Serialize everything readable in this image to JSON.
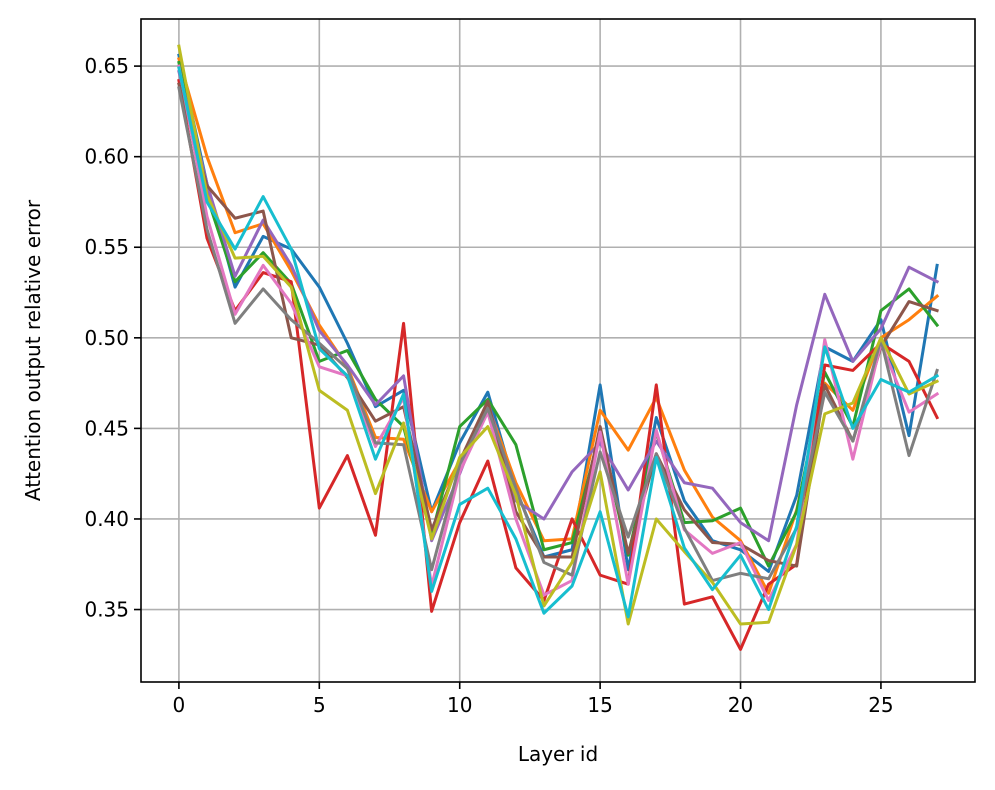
{
  "chart_data": {
    "type": "line",
    "title": "",
    "xlabel": "Layer id",
    "ylabel": "Attention output relative error",
    "xlim": [
      -1.35,
      28.35
    ],
    "ylim": [
      0.31,
      0.676
    ],
    "xticks": [
      0,
      5,
      10,
      15,
      20,
      25
    ],
    "yticks": [
      0.35,
      0.4,
      0.45,
      0.5,
      0.55,
      0.6,
      0.65
    ],
    "ytick_labels": [
      "0.35",
      "0.40",
      "0.45",
      "0.50",
      "0.55",
      "0.60",
      "0.65"
    ],
    "grid": true,
    "legend": "none",
    "x": [
      0,
      1,
      2,
      3,
      4,
      5,
      6,
      7,
      8,
      9,
      10,
      11,
      12,
      13,
      14,
      15,
      16,
      17,
      18,
      19,
      20,
      21,
      22,
      23,
      24,
      25,
      26,
      27
    ],
    "series": [
      {
        "color": "#1f77b4",
        "values": [
          0.656,
          0.585,
          0.528,
          0.556,
          0.549,
          0.528,
          0.497,
          0.462,
          0.471,
          0.404,
          0.442,
          0.47,
          0.416,
          0.379,
          0.383,
          0.474,
          0.372,
          0.456,
          0.41,
          0.388,
          0.383,
          0.371,
          0.413,
          0.495,
          0.487,
          0.51,
          0.446,
          0.54
        ]
      },
      {
        "color": "#ff7f0e",
        "values": [
          0.654,
          0.6,
          0.558,
          0.563,
          0.537,
          0.507,
          0.484,
          0.445,
          0.444,
          0.404,
          0.432,
          0.463,
          0.42,
          0.388,
          0.389,
          0.46,
          0.438,
          0.467,
          0.427,
          0.401,
          0.388,
          0.359,
          0.405,
          0.475,
          0.46,
          0.5,
          0.51,
          0.523
        ]
      },
      {
        "color": "#2ca02c",
        "values": [
          0.652,
          0.578,
          0.531,
          0.547,
          0.53,
          0.487,
          0.493,
          0.466,
          0.451,
          0.391,
          0.451,
          0.466,
          0.441,
          0.383,
          0.387,
          0.448,
          0.38,
          0.448,
          0.398,
          0.399,
          0.406,
          0.374,
          0.404,
          0.481,
          0.451,
          0.515,
          0.527,
          0.507
        ]
      },
      {
        "color": "#d62728",
        "values": [
          0.642,
          0.555,
          0.515,
          0.536,
          0.531,
          0.406,
          0.435,
          0.391,
          0.508,
          0.349,
          0.398,
          0.432,
          0.373,
          0.355,
          0.4,
          0.369,
          0.364,
          0.474,
          0.353,
          0.357,
          0.328,
          0.364,
          0.375,
          0.485,
          0.482,
          0.497,
          0.487,
          0.456
        ]
      },
      {
        "color": "#9467bd",
        "values": [
          0.647,
          0.585,
          0.534,
          0.565,
          0.54,
          0.504,
          0.485,
          0.463,
          0.479,
          0.388,
          0.425,
          0.465,
          0.41,
          0.4,
          0.426,
          0.442,
          0.416,
          0.443,
          0.42,
          0.417,
          0.398,
          0.388,
          0.463,
          0.524,
          0.487,
          0.505,
          0.539,
          0.531
        ]
      },
      {
        "color": "#8c564b",
        "values": [
          0.64,
          0.584,
          0.566,
          0.57,
          0.5,
          0.496,
          0.478,
          0.454,
          0.462,
          0.394,
          0.432,
          0.465,
          0.404,
          0.379,
          0.379,
          0.451,
          0.381,
          0.436,
          0.405,
          0.387,
          0.386,
          0.377,
          0.374,
          0.474,
          0.443,
          0.495,
          0.52,
          0.515
        ]
      },
      {
        "color": "#e377c2",
        "values": [
          0.65,
          0.567,
          0.513,
          0.54,
          0.519,
          0.484,
          0.479,
          0.44,
          0.467,
          0.363,
          0.426,
          0.459,
          0.4,
          0.358,
          0.366,
          0.448,
          0.364,
          0.449,
          0.394,
          0.381,
          0.387,
          0.355,
          0.386,
          0.499,
          0.433,
          0.497,
          0.459,
          0.469
        ]
      },
      {
        "color": "#7f7f7f",
        "values": [
          0.638,
          0.56,
          0.508,
          0.527,
          0.51,
          0.497,
          0.483,
          0.442,
          0.441,
          0.372,
          0.43,
          0.461,
          0.417,
          0.376,
          0.369,
          0.437,
          0.39,
          0.436,
          0.395,
          0.366,
          0.37,
          0.367,
          0.395,
          0.47,
          0.443,
          0.499,
          0.435,
          0.482
        ]
      },
      {
        "color": "#bcbd22",
        "values": [
          0.661,
          0.579,
          0.544,
          0.545,
          0.528,
          0.471,
          0.46,
          0.414,
          0.453,
          0.389,
          0.434,
          0.451,
          0.413,
          0.352,
          0.376,
          0.426,
          0.342,
          0.4,
          0.382,
          0.365,
          0.342,
          0.343,
          0.386,
          0.458,
          0.464,
          0.5,
          0.469,
          0.476
        ]
      },
      {
        "color": "#17becf",
        "values": [
          0.649,
          0.575,
          0.549,
          0.578,
          0.549,
          0.494,
          0.479,
          0.433,
          0.469,
          0.36,
          0.408,
          0.417,
          0.389,
          0.348,
          0.363,
          0.404,
          0.346,
          0.434,
          0.384,
          0.361,
          0.38,
          0.35,
          0.396,
          0.495,
          0.45,
          0.477,
          0.47,
          0.479
        ]
      }
    ]
  }
}
